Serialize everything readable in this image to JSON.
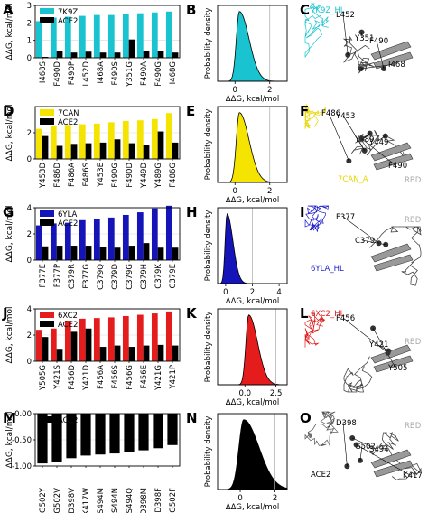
{
  "figure": {
    "rows": [
      {
        "bar_label": "A",
        "density_label": "B",
        "structure_label": "C",
        "structure_texts": [
          "7K9Z_HL",
          "Y351",
          "I468",
          "L452",
          "F490"
        ],
        "structure_color": "#19c3cf"
      },
      {
        "bar_label": "D",
        "density_label": "E",
        "structure_label": "F",
        "structure_texts": [
          "F486",
          "Y489",
          "F490",
          "Y453",
          "Y449",
          "7CAN_A",
          "RBD"
        ],
        "structure_color": "#e8d500"
      },
      {
        "bar_label": "G",
        "density_label": "H",
        "structure_label": "I",
        "structure_texts": [
          "RBD",
          "C379",
          "6YLA_HL",
          "F377"
        ],
        "structure_color": "#1f1fcc"
      },
      {
        "bar_label": "J",
        "density_label": "K",
        "structure_label": "L",
        "structure_texts": [
          "6XC2_HL",
          "RBD",
          "Y505",
          "F456",
          "Y421"
        ],
        "structure_color": "#e01b1b"
      },
      {
        "bar_label": "M",
        "density_label": "N",
        "structure_label": "O",
        "structure_texts": [
          "RBD",
          "G502",
          "ACE2",
          "D398",
          "S494",
          "K417"
        ],
        "structure_color": "#555555"
      }
    ]
  },
  "chart_data": [
    {
      "type": "bar",
      "panel": "A",
      "ylabel": "ΔΔG, kcal/mol",
      "ylim": [
        0,
        3
      ],
      "yticks": [
        0,
        1,
        2,
        3
      ],
      "categories": [
        "I468S",
        "F490D",
        "F490P",
        "L452D",
        "I468A",
        "F490S",
        "Y351G",
        "F490A",
        "F490G",
        "I468G"
      ],
      "series": [
        {
          "name": "7K9Z",
          "color": "#19c3cf",
          "values": [
            2.1,
            2.3,
            2.35,
            2.4,
            2.45,
            2.45,
            2.5,
            2.55,
            2.6,
            2.65
          ]
        },
        {
          "name": "ACE2",
          "color": "#000000",
          "values": [
            0.05,
            0.4,
            0.3,
            0.35,
            0.3,
            0.3,
            1.05,
            0.4,
            0.4,
            0.3
          ]
        }
      ],
      "legend": "top-left"
    },
    {
      "type": "bar",
      "panel": "D",
      "ylabel": "ΔΔG, kcal/mol",
      "ylim": [
        0,
        4
      ],
      "yticks": [
        0,
        2
      ],
      "categories": [
        "Y453D",
        "F486D",
        "F486A",
        "F486S",
        "Y453E",
        "F490G",
        "F490D",
        "Y449D",
        "Y489G",
        "F486G"
      ],
      "series": [
        {
          "name": "7CAN",
          "color": "#f5e400",
          "values": [
            2.3,
            2.5,
            2.6,
            2.65,
            2.7,
            2.8,
            2.9,
            2.95,
            3.05,
            3.5
          ]
        },
        {
          "name": "ACE2",
          "color": "#000000",
          "values": [
            1.75,
            1.0,
            1.15,
            1.2,
            1.25,
            1.5,
            1.2,
            1.1,
            2.1,
            1.25
          ]
        }
      ],
      "legend": "top-left"
    },
    {
      "type": "bar",
      "panel": "G",
      "ylabel": "ΔΔG, kcal/mol",
      "ylim": [
        0,
        4
      ],
      "yticks": [
        0,
        2,
        4
      ],
      "categories": [
        "F377E",
        "F377P",
        "C379R",
        "F377G",
        "C379Q",
        "C379D",
        "C379G",
        "C379H",
        "C379K",
        "C379E"
      ],
      "series": [
        {
          "name": "6YLA",
          "color": "#1414b8",
          "values": [
            2.65,
            2.8,
            2.85,
            3.05,
            3.15,
            3.25,
            3.45,
            3.65,
            3.95,
            4.15
          ]
        },
        {
          "name": "ACE2",
          "color": "#000000",
          "values": [
            1.05,
            1.1,
            1.1,
            1.1,
            1.0,
            0.95,
            1.1,
            1.3,
            0.95,
            0.95
          ]
        }
      ],
      "legend": "top-left"
    },
    {
      "type": "bar",
      "panel": "J",
      "ylabel": "ΔΔG, kcal/mol",
      "ylim": [
        0,
        4
      ],
      "yticks": [
        0,
        2,
        4
      ],
      "categories": [
        "Y505G",
        "Y421S",
        "F456D",
        "Y421D",
        "F456A",
        "F456S",
        "F456G",
        "F456E",
        "Y421G",
        "Y421P"
      ],
      "series": [
        {
          "name": "6XC2",
          "color": "#e51c1c",
          "values": [
            2.4,
            2.5,
            3.1,
            3.25,
            3.3,
            3.35,
            3.45,
            3.55,
            3.65,
            3.8
          ]
        },
        {
          "name": "ACE2",
          "color": "#000000",
          "values": [
            1.85,
            0.95,
            2.25,
            2.5,
            1.1,
            1.2,
            1.1,
            1.2,
            1.25,
            1.2
          ]
        }
      ],
      "legend": "top-left"
    },
    {
      "type": "bar",
      "panel": "M",
      "ylabel": "ΔΔG, kcal/mol",
      "ylim": [
        -1.0,
        0.0
      ],
      "yticks": [
        0.0,
        -0.5,
        -1.0
      ],
      "yticklabels": [
        "0.00",
        "-0.50",
        "-1.00"
      ],
      "categories": [
        "G502Y",
        "G502V",
        "D398V",
        "K417W",
        "S494M",
        "S494N",
        "S494Q",
        "D398M",
        "D398F",
        "G502F"
      ],
      "series": [
        {
          "name": "ACE2",
          "color": "#000000",
          "values": [
            -0.95,
            -0.92,
            -0.85,
            -0.8,
            -0.78,
            -0.76,
            -0.74,
            -0.7,
            -0.66,
            -0.6
          ]
        }
      ],
      "legend": "top-left"
    },
    {
      "type": "area",
      "panel": "B",
      "ylabel": "Probability density",
      "xlabel": "ΔΔG, kcal/mol",
      "xlim": [
        -1,
        3
      ],
      "xticks": [
        0,
        2
      ],
      "vline": 2,
      "color": "#19c3cf",
      "mode": 0.25,
      "spread": 0.35
    },
    {
      "type": "area",
      "panel": "E",
      "ylabel": "Probability density",
      "xlabel": "ΔΔG, kcal/mol",
      "xlim": [
        -1,
        3
      ],
      "xticks": [
        0,
        2
      ],
      "vline": 2,
      "color": "#f5e400",
      "mode": 0.25,
      "spread": 0.35
    },
    {
      "type": "area",
      "panel": "H",
      "ylabel": "Probability density",
      "xlabel": "ΔΔG, kcal/mol",
      "xlim": [
        -0.6,
        4.6
      ],
      "xticks": [
        0,
        2,
        4
      ],
      "vline": 2,
      "color": "#1414b8",
      "mode": 0.1,
      "spread": 0.28
    },
    {
      "type": "area",
      "panel": "K",
      "ylabel": "Probability density",
      "xlabel": "ΔΔG, kcal/mol",
      "xlim": [
        -2.2,
        3.4
      ],
      "xticks": [
        0.0,
        2.5
      ],
      "xticklabels": [
        "0.0",
        "2.5"
      ],
      "vline": 2.5,
      "color": "#e51c1c",
      "mode": 0.3,
      "spread": 0.45
    },
    {
      "type": "area",
      "panel": "N",
      "ylabel": "Probability density",
      "xlabel": "ΔΔG, kcal/mol",
      "xlim": [
        -1.3,
        2.7
      ],
      "xticks": [
        0,
        2
      ],
      "vline": 2,
      "color": "#000000",
      "mode": 0.2,
      "spread": 0.55
    }
  ]
}
